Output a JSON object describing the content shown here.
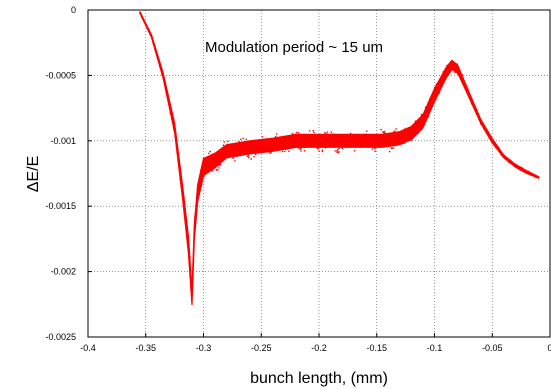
{
  "chart_data": {
    "type": "scatter",
    "xlabel": "bunch length, (mm)",
    "ylabel": "ΔE/E",
    "annotation": "Modulation period ~ 15 um",
    "xlim": [
      -0.4,
      0
    ],
    "ylim": [
      -0.0025,
      0
    ],
    "xticks": [
      "-0.4",
      "-0.35",
      "-0.3",
      "-0.25",
      "-0.2",
      "-0.15",
      "-0.1",
      "-0.05",
      "0"
    ],
    "yticks": [
      "0",
      "-0.0005",
      "-0.001",
      "-0.0015",
      "-0.002",
      "-0.0025"
    ],
    "grid": true,
    "color": "#ff0000",
    "series": [
      {
        "center_x": [
          -0.355,
          -0.345,
          -0.335,
          -0.325,
          -0.318,
          -0.313,
          -0.31,
          -0.308,
          -0.305,
          -0.3,
          -0.29,
          -0.28,
          -0.26,
          -0.24,
          -0.22,
          -0.2,
          -0.18,
          -0.16,
          -0.145,
          -0.13,
          -0.12,
          -0.11,
          -0.1,
          -0.09,
          -0.085,
          -0.08,
          -0.075,
          -0.07,
          -0.06,
          -0.05,
          -0.04,
          -0.03,
          -0.02,
          -0.01
        ],
        "center_y": [
          -2e-05,
          -0.0002,
          -0.0005,
          -0.0009,
          -0.0014,
          -0.0018,
          -0.0022,
          -0.0017,
          -0.0014,
          -0.0012,
          -0.00115,
          -0.00108,
          -0.00105,
          -0.00103,
          -0.001,
          -0.001,
          -0.001,
          -0.001,
          -0.001,
          -0.00098,
          -0.00094,
          -0.00085,
          -0.00065,
          -0.00048,
          -0.00042,
          -0.00045,
          -0.00055,
          -0.00065,
          -0.00085,
          -0.001,
          -0.00112,
          -0.00119,
          -0.00124,
          -0.00128
        ],
        "spread": [
          1e-05,
          2e-05,
          4e-05,
          7e-05,
          0.0001,
          0.00013,
          0.00011,
          0.00012,
          0.00013,
          0.00013,
          0.00011,
          0.0001,
          0.0001,
          0.0001,
          0.0001,
          0.0001,
          0.0001,
          0.0001,
          0.0001,
          0.0001,
          0.0001,
          0.0001,
          0.0001,
          8e-05,
          7e-05,
          6e-05,
          5e-05,
          4e-05,
          3e-05,
          3e-05,
          2e-05,
          2e-05,
          2e-05,
          1e-05
        ]
      }
    ]
  }
}
